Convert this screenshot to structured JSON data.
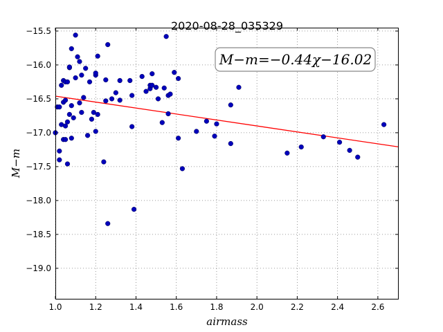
{
  "chart_data": {
    "type": "scatter",
    "title": "2020-08-28_035329",
    "xlabel": "airmass",
    "ylabel": "M−m",
    "xlim": [
      1.0,
      2.7
    ],
    "ylim": [
      -19.45,
      -15.45
    ],
    "y_inverted": true,
    "grid": true,
    "x_ticks": [
      1.0,
      1.2,
      1.4,
      1.6,
      1.8,
      2.0,
      2.2,
      2.4,
      2.6
    ],
    "x_tick_labels": [
      "1.0",
      "1.2",
      "1.4",
      "1.6",
      "1.8",
      "2.0",
      "2.2",
      "2.4",
      "2.6"
    ],
    "y_ticks": [
      -15.5,
      -16.0,
      -16.5,
      -17.0,
      -17.5,
      -18.0,
      -18.5,
      -19.0
    ],
    "y_tick_labels": [
      "−15.5",
      "−16.0",
      "−16.5",
      "−17.0",
      "−17.5",
      "−18.0",
      "−18.5",
      "−19.0"
    ],
    "annotation": "M−m=−0.44χ−16.02",
    "fit": {
      "slope": -0.44,
      "intercept": -16.02,
      "color": "#ff0000"
    },
    "marker_color": "#0000bb",
    "points": [
      [
        1.0,
        -17.0
      ],
      [
        1.01,
        -16.62
      ],
      [
        1.02,
        -16.62
      ],
      [
        1.02,
        -17.27
      ],
      [
        1.02,
        -17.4
      ],
      [
        1.03,
        -16.88
      ],
      [
        1.03,
        -16.3
      ],
      [
        1.04,
        -16.55
      ],
      [
        1.04,
        -16.23
      ],
      [
        1.04,
        -17.1
      ],
      [
        1.05,
        -16.9
      ],
      [
        1.05,
        -17.1
      ],
      [
        1.05,
        -16.52
      ],
      [
        1.05,
        -16.25
      ],
      [
        1.06,
        -17.46
      ],
      [
        1.06,
        -16.25
      ],
      [
        1.06,
        -16.84
      ],
      [
        1.07,
        -16.04
      ],
      [
        1.07,
        -16.03
      ],
      [
        1.07,
        -16.73
      ],
      [
        1.08,
        -15.76
      ],
      [
        1.08,
        -16.6
      ],
      [
        1.08,
        -17.08
      ],
      [
        1.09,
        -16.78
      ],
      [
        1.1,
        -15.56
      ],
      [
        1.1,
        -16.19
      ],
      [
        1.11,
        -15.88
      ],
      [
        1.12,
        -15.95
      ],
      [
        1.12,
        -16.56
      ],
      [
        1.13,
        -16.15
      ],
      [
        1.13,
        -16.7
      ],
      [
        1.14,
        -16.48
      ],
      [
        1.15,
        -16.05
      ],
      [
        1.16,
        -17.04
      ],
      [
        1.17,
        -16.25
      ],
      [
        1.18,
        -16.8
      ],
      [
        1.19,
        -16.7
      ],
      [
        1.2,
        -16.15
      ],
      [
        1.2,
        -16.12
      ],
      [
        1.2,
        -16.98
      ],
      [
        1.21,
        -15.87
      ],
      [
        1.21,
        -16.73
      ],
      [
        1.24,
        -17.43
      ],
      [
        1.25,
        -16.22
      ],
      [
        1.25,
        -16.53
      ],
      [
        1.26,
        -15.7
      ],
      [
        1.26,
        -18.34
      ],
      [
        1.28,
        -16.5
      ],
      [
        1.3,
        -16.41
      ],
      [
        1.32,
        -16.52
      ],
      [
        1.32,
        -16.23
      ],
      [
        1.37,
        -16.23
      ],
      [
        1.38,
        -16.45
      ],
      [
        1.38,
        -16.91
      ],
      [
        1.39,
        -18.13
      ],
      [
        1.43,
        -16.17
      ],
      [
        1.45,
        -16.39
      ],
      [
        1.47,
        -16.35
      ],
      [
        1.47,
        -16.3
      ],
      [
        1.48,
        -16.3
      ],
      [
        1.48,
        -16.13
      ],
      [
        1.5,
        -16.33
      ],
      [
        1.51,
        -16.5
      ],
      [
        1.53,
        -16.85
      ],
      [
        1.54,
        -16.34
      ],
      [
        1.55,
        -15.58
      ],
      [
        1.56,
        -16.72
      ],
      [
        1.56,
        -16.45
      ],
      [
        1.57,
        -16.43
      ],
      [
        1.59,
        -16.11
      ],
      [
        1.61,
        -16.2
      ],
      [
        1.61,
        -17.08
      ],
      [
        1.63,
        -17.53
      ],
      [
        1.7,
        -16.98
      ],
      [
        1.75,
        -16.83
      ],
      [
        1.79,
        -17.05
      ],
      [
        1.8,
        -16.87
      ],
      [
        1.87,
        -16.59
      ],
      [
        1.87,
        -17.16
      ],
      [
        1.91,
        -16.33
      ],
      [
        2.15,
        -17.3
      ],
      [
        2.22,
        -17.21
      ],
      [
        2.33,
        -17.06
      ],
      [
        2.41,
        -17.14
      ],
      [
        2.46,
        -17.26
      ],
      [
        2.5,
        -17.36
      ],
      [
        2.63,
        -16.88
      ]
    ]
  }
}
